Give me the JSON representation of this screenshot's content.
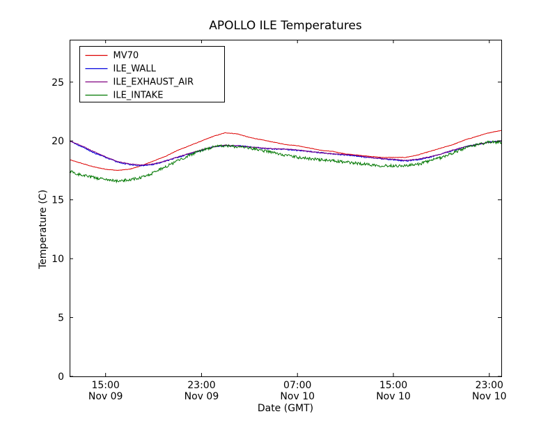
{
  "chart_data": {
    "type": "line",
    "title": "APOLLO ILE Temperatures",
    "xlabel": "Date (GMT)",
    "ylabel": "Temperature (C)",
    "x_unit": "hours since Nov 09 12:00 GMT",
    "xlim": [
      0,
      36
    ],
    "ylim": [
      0,
      28.6
    ],
    "yticks": [
      0,
      5,
      10,
      15,
      20,
      25
    ],
    "xticks": [
      {
        "t": 3,
        "time": "15:00",
        "date": "Nov 09"
      },
      {
        "t": 11,
        "time": "23:00",
        "date": "Nov 09"
      },
      {
        "t": 19,
        "time": "07:00",
        "date": "Nov 10"
      },
      {
        "t": 27,
        "time": "15:00",
        "date": "Nov 10"
      },
      {
        "t": 35,
        "time": "23:00",
        "date": "Nov 10"
      }
    ],
    "grid": false,
    "legend_position": "upper left",
    "x": [
      0,
      1,
      2,
      3,
      4,
      5,
      6,
      7,
      8,
      9,
      10,
      11,
      12,
      13,
      14,
      15,
      16,
      17,
      18,
      19,
      20,
      21,
      22,
      23,
      24,
      25,
      26,
      27,
      28,
      29,
      30,
      31,
      32,
      33,
      34,
      35,
      36
    ],
    "series": [
      {
        "name": "MV70",
        "color": "#dd0000",
        "noise": 0.02,
        "values": [
          18.4,
          18.1,
          17.8,
          17.6,
          17.5,
          17.6,
          17.9,
          18.3,
          18.7,
          19.2,
          19.6,
          20.0,
          20.4,
          20.7,
          20.6,
          20.3,
          20.1,
          19.9,
          19.7,
          19.6,
          19.4,
          19.2,
          19.1,
          18.9,
          18.8,
          18.7,
          18.6,
          18.6,
          18.6,
          18.8,
          19.1,
          19.4,
          19.7,
          20.1,
          20.4,
          20.7,
          20.9
        ]
      },
      {
        "name": "ILE_WALL",
        "color": "#0000dd",
        "noise": 0.05,
        "values": [
          20.0,
          19.5,
          19.0,
          18.6,
          18.2,
          18.0,
          17.9,
          18.0,
          18.3,
          18.6,
          18.9,
          19.2,
          19.5,
          19.6,
          19.6,
          19.5,
          19.4,
          19.3,
          19.3,
          19.2,
          19.1,
          19.0,
          18.9,
          18.8,
          18.7,
          18.6,
          18.5,
          18.4,
          18.3,
          18.4,
          18.6,
          18.9,
          19.2,
          19.5,
          19.7,
          19.9,
          20.0
        ]
      },
      {
        "name": "ILE_EXHAUST_AIR",
        "color": "#800080",
        "noise": 0.03,
        "values": [
          20.0,
          19.6,
          19.1,
          18.65,
          18.25,
          18.05,
          17.95,
          18.05,
          18.3,
          18.65,
          18.95,
          19.25,
          19.5,
          19.65,
          19.6,
          19.5,
          19.4,
          19.35,
          19.3,
          19.25,
          19.1,
          19.0,
          18.9,
          18.85,
          18.75,
          18.6,
          18.5,
          18.45,
          18.35,
          18.45,
          18.65,
          18.9,
          19.25,
          19.5,
          19.7,
          19.9,
          20.0
        ]
      },
      {
        "name": "ILE_INTAKE",
        "color": "#007700",
        "noise": 0.12,
        "values": [
          17.4,
          17.1,
          16.9,
          16.7,
          16.6,
          16.7,
          16.9,
          17.3,
          17.8,
          18.3,
          18.8,
          19.2,
          19.5,
          19.6,
          19.5,
          19.4,
          19.2,
          19.0,
          18.8,
          18.6,
          18.5,
          18.4,
          18.3,
          18.2,
          18.1,
          18.0,
          17.9,
          17.9,
          17.9,
          18.0,
          18.3,
          18.6,
          19.0,
          19.4,
          19.7,
          19.9,
          19.9
        ]
      }
    ]
  }
}
